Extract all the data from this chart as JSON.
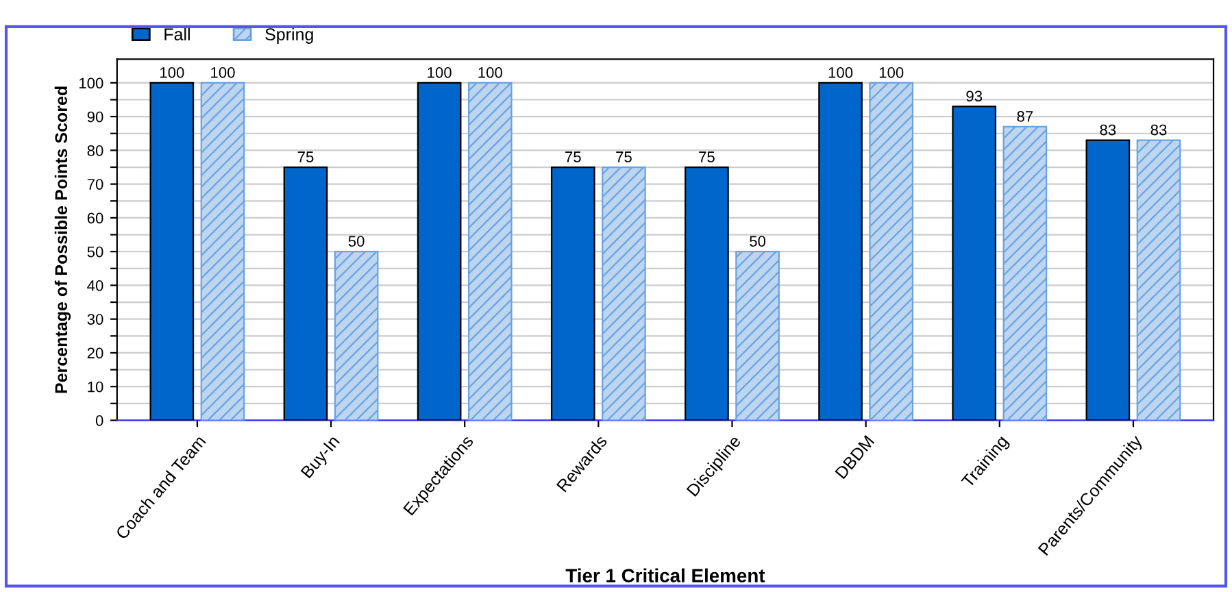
{
  "chart_data": {
    "type": "bar",
    "xlabel": "Tier 1 Critical Element",
    "ylabel": "Percentage of Possible Points Scored",
    "categories": [
      "Coach and Team",
      "Buy-In",
      "Expectations",
      "Rewards",
      "Discipline",
      "DBDM",
      "Training",
      "Parents/Community"
    ],
    "series": [
      {
        "name": "Fall",
        "color": "#0066cc",
        "values": [
          100,
          75,
          100,
          75,
          75,
          100,
          93,
          83
        ]
      },
      {
        "name": "Spring",
        "color": "#6aa2e0",
        "values": [
          100,
          50,
          100,
          75,
          50,
          100,
          87,
          83
        ]
      }
    ],
    "ylim": [
      0,
      107
    ],
    "yticks": [
      0,
      {
        "value": 5,
        "label": null
      },
      10,
      {
        "value": 15,
        "label": null
      },
      20,
      {
        "value": 25,
        "label": null
      },
      30,
      {
        "value": 35,
        "label": null
      },
      40,
      {
        "value": 45,
        "label": null
      },
      50,
      {
        "value": 55,
        "label": null
      },
      60,
      {
        "value": 65,
        "label": null
      },
      70,
      {
        "value": 75,
        "label": null
      },
      80,
      {
        "value": 85,
        "label": null
      },
      90,
      {
        "value": 95,
        "label": null
      },
      100
    ],
    "grid": "y",
    "legend": "top left",
    "data_labels": true
  }
}
